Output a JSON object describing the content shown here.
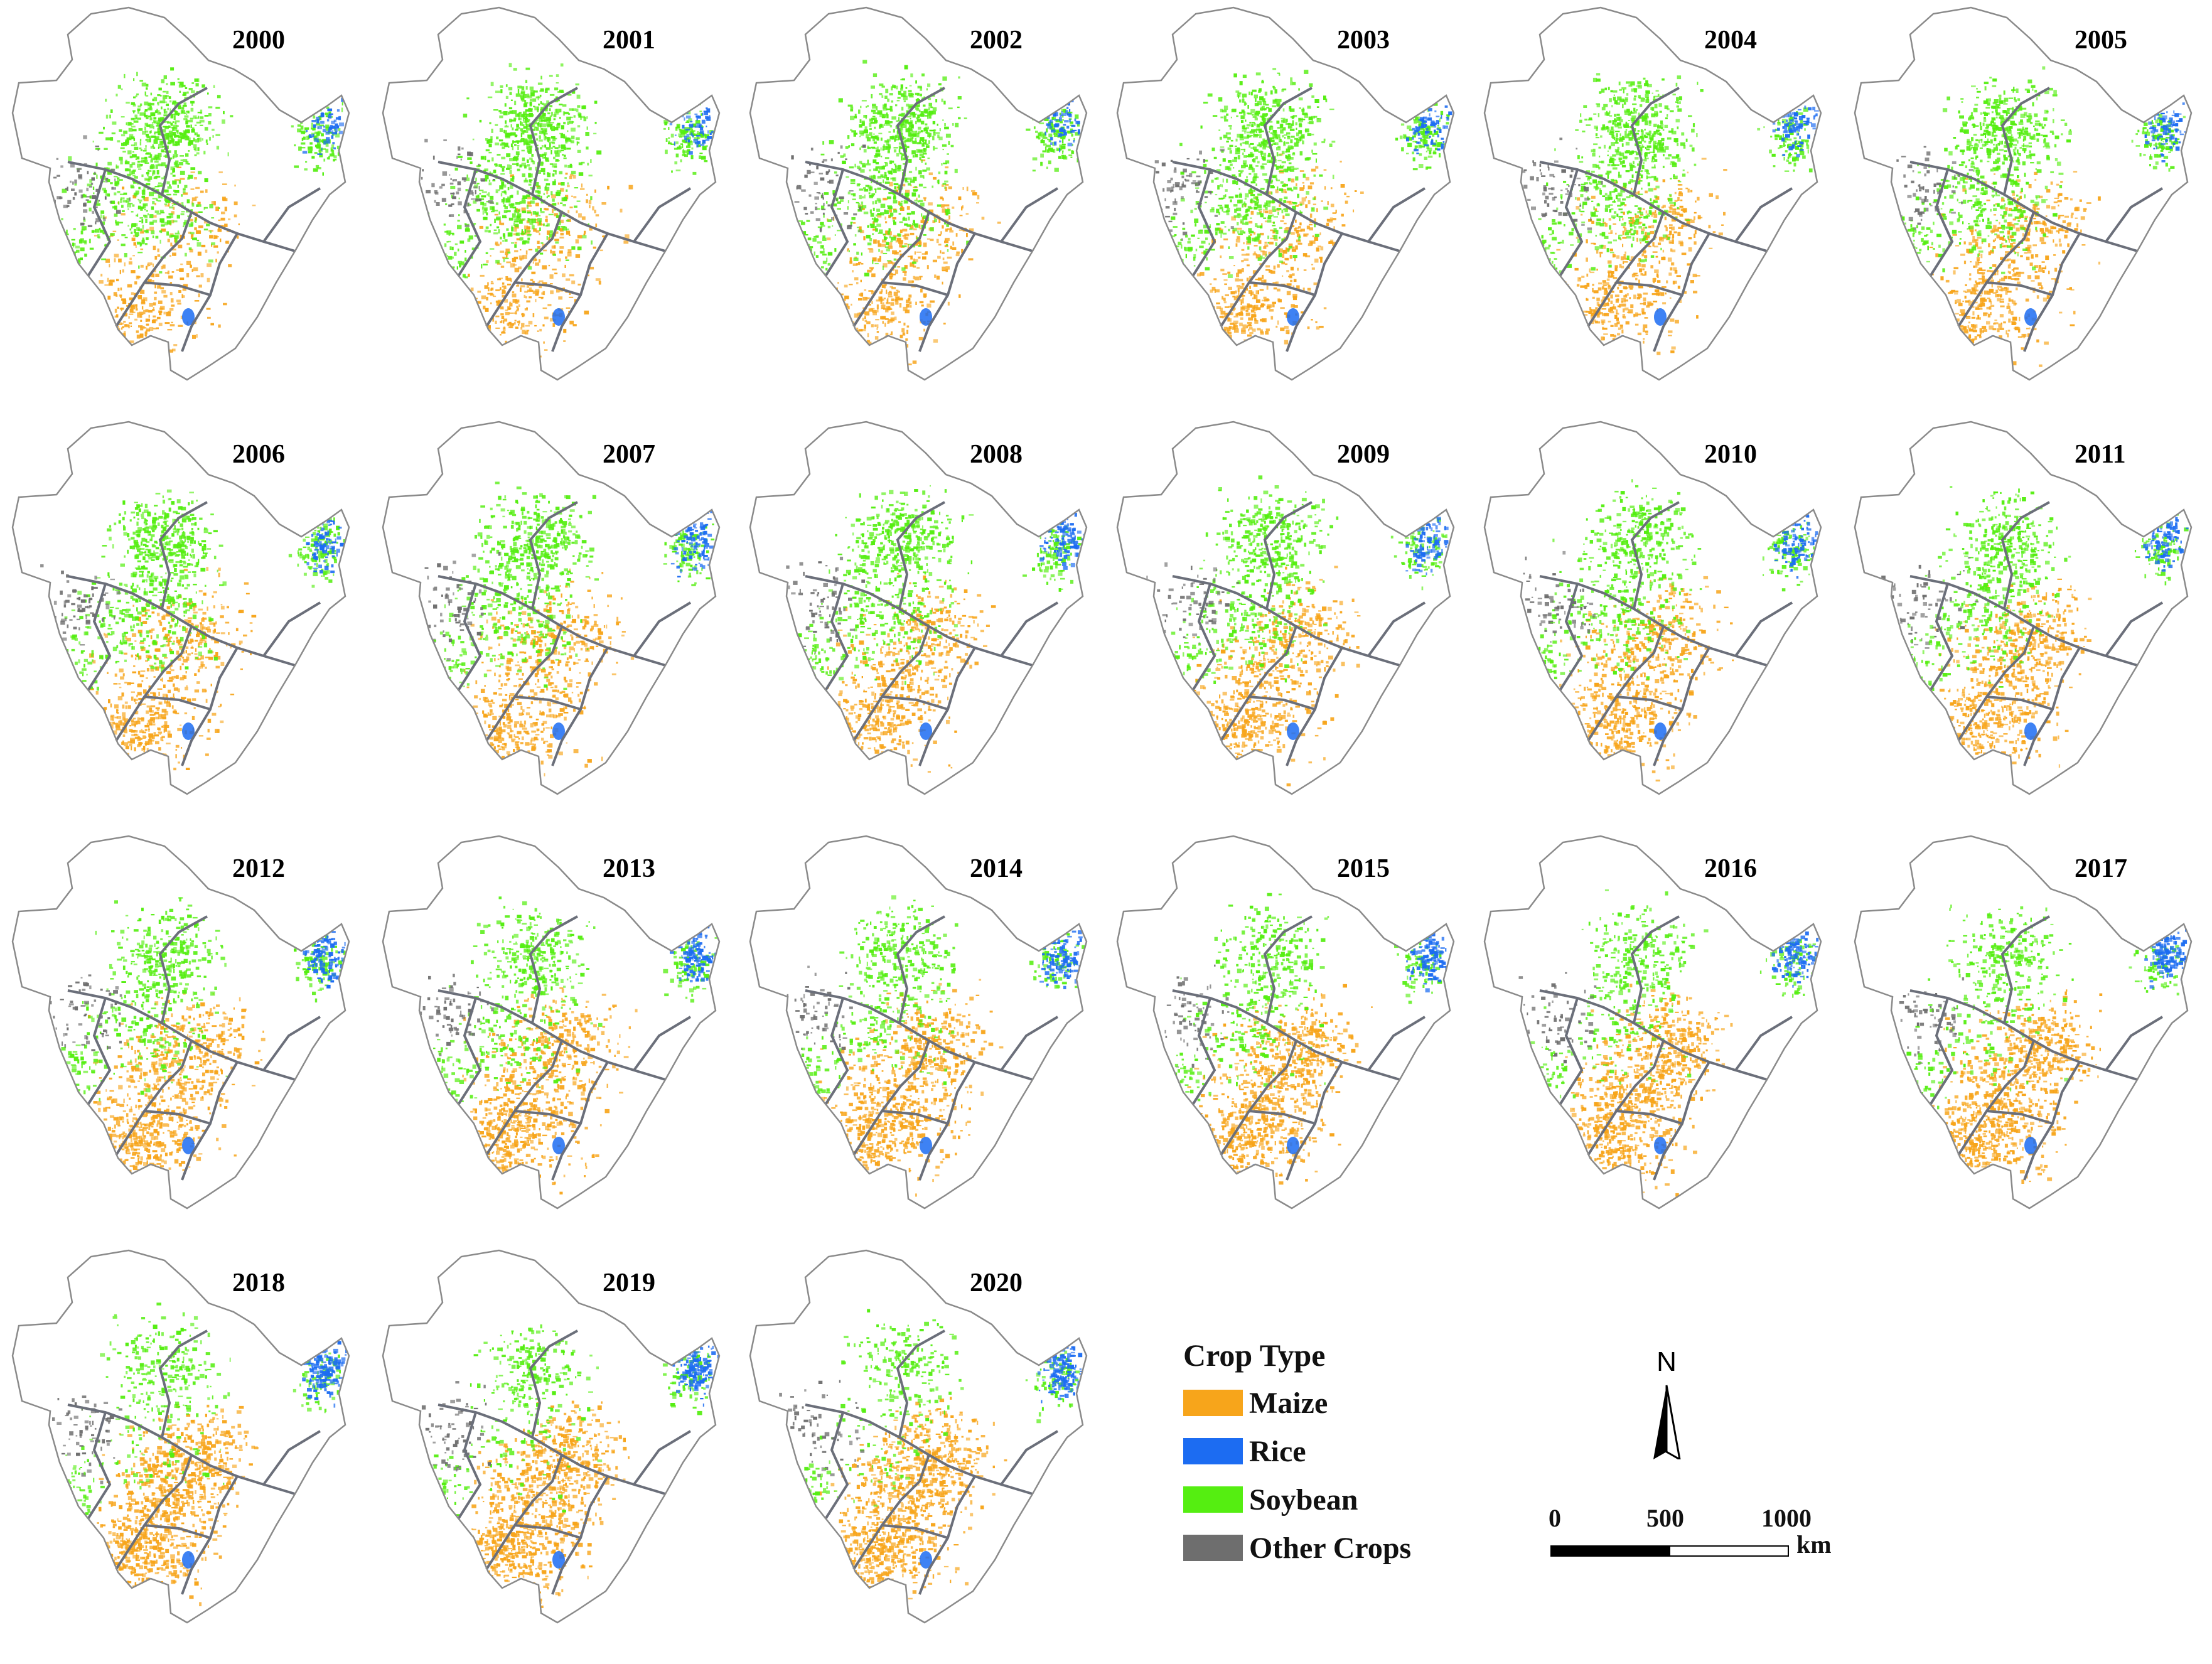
{
  "panels": [
    {
      "year": "2000"
    },
    {
      "year": "2001"
    },
    {
      "year": "2002"
    },
    {
      "year": "2003"
    },
    {
      "year": "2004"
    },
    {
      "year": "2005"
    },
    {
      "year": "2006"
    },
    {
      "year": "2007"
    },
    {
      "year": "2008"
    },
    {
      "year": "2009"
    },
    {
      "year": "2010"
    },
    {
      "year": "2011"
    },
    {
      "year": "2012"
    },
    {
      "year": "2013"
    },
    {
      "year": "2014"
    },
    {
      "year": "2015"
    },
    {
      "year": "2016"
    },
    {
      "year": "2017"
    },
    {
      "year": "2018"
    },
    {
      "year": "2019"
    },
    {
      "year": "2020"
    }
  ],
  "legend": {
    "title": "Crop Type",
    "items": [
      {
        "label": "Maize",
        "color": "#f7a51b"
      },
      {
        "label": "Rice",
        "color": "#1c6cf2"
      },
      {
        "label": "Soybean",
        "color": "#55ee11"
      },
      {
        "label": "Other Crops",
        "color": "#6e6e6e"
      }
    ]
  },
  "north_arrow": {
    "label": "N"
  },
  "scale_bar": {
    "ticks": [
      "0",
      "500",
      "1000"
    ],
    "unit": "km"
  }
}
